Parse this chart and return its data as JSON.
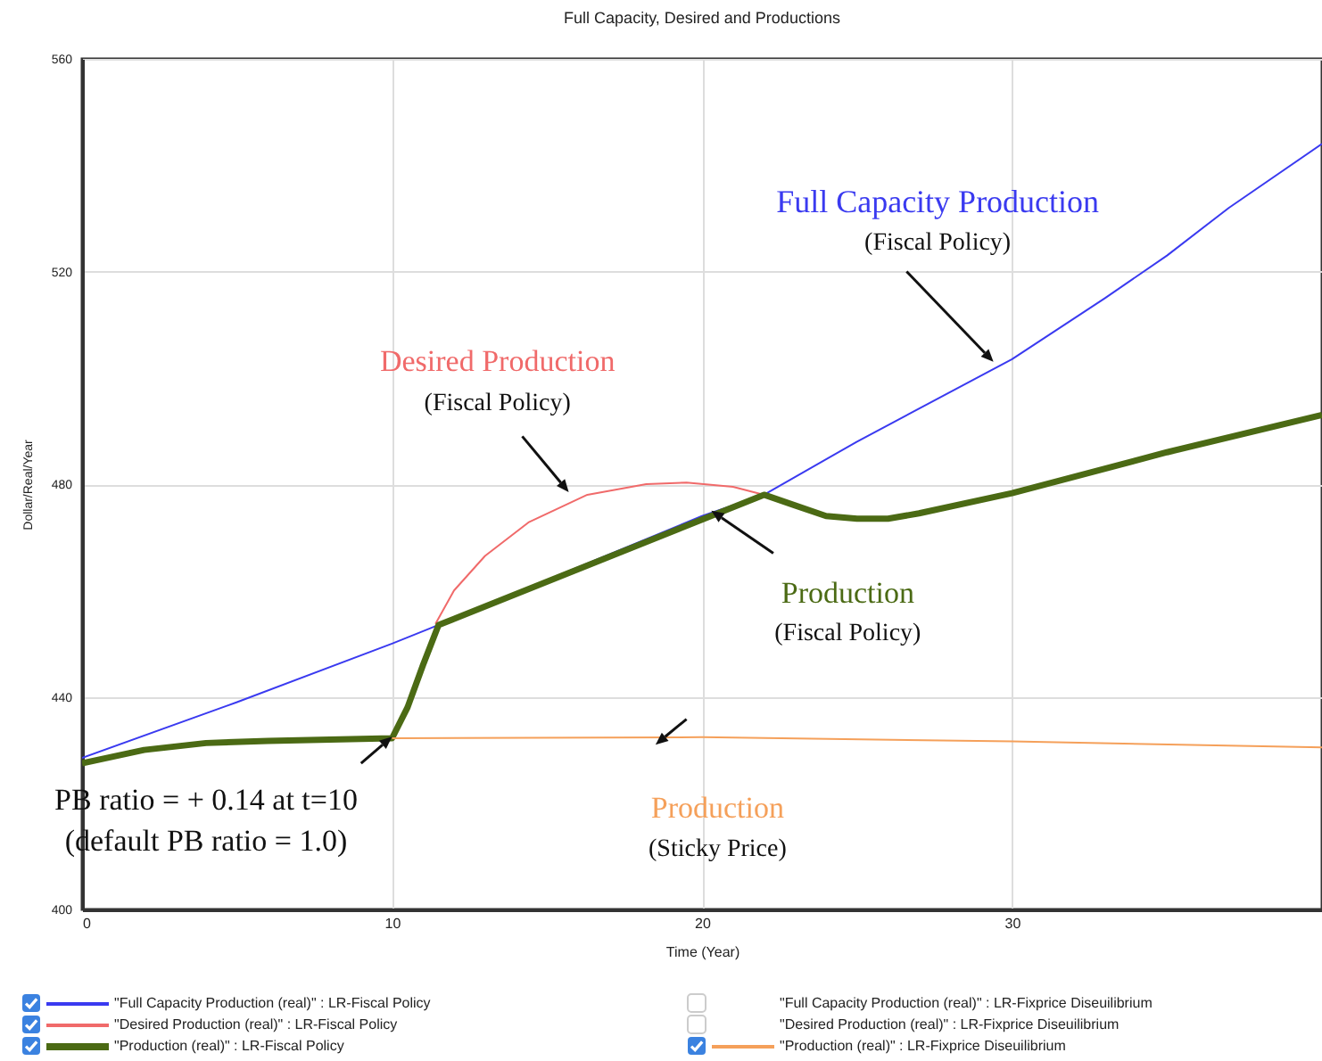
{
  "chart_data": {
    "type": "line",
    "title": "Full Capacity, Desired and Productions",
    "xlabel": "Time (Year)",
    "ylabel": "Dollar/Real/Year",
    "xlim": [
      0,
      40
    ],
    "xticks": [
      0,
      10,
      20,
      30
    ],
    "ylim": [
      400,
      560
    ],
    "yticks": [
      400,
      440,
      480,
      520,
      560
    ],
    "grid": true,
    "legend": "bottom",
    "marker": "none",
    "line_style": "solid",
    "series": [
      {
        "name": "\"Full Capacity Production (real)\" : LR-Fiscal Policy",
        "color": "#3a3af0",
        "x": [
          0,
          5,
          10,
          11.2,
          20,
          22,
          25,
          30,
          33,
          35,
          37,
          40
        ],
        "values": [
          428.5,
          439,
          450,
          452.8,
          474,
          478,
          488,
          503.5,
          515,
          523,
          532,
          544
        ]
      },
      {
        "name": "\"Desired Production (real)\" : LR-Fiscal Policy",
        "color": "#f06a6a",
        "x": [
          11.4,
          12,
          13,
          14.4,
          16.3,
          18.2,
          19.5,
          21,
          22
        ],
        "values": [
          453.7,
          460,
          466.5,
          472.8,
          478,
          480,
          480.3,
          479.5,
          478
        ]
      },
      {
        "name": "\"Production (real)\" : LR-Fiscal Policy",
        "color": "#4b6a14",
        "x": [
          0,
          2,
          4,
          6,
          10,
          10.5,
          11,
          11.5,
          22,
          23,
          24,
          25,
          26,
          27,
          30,
          35,
          40
        ],
        "values": [
          427.5,
          430,
          431.3,
          431.7,
          432.2,
          438,
          446,
          453.5,
          478,
          476,
          474,
          473.5,
          473.5,
          474.5,
          478.3,
          486,
          493
        ]
      },
      {
        "name": "\"Production (real)\" : LR-Fixprice Diseuilibrium",
        "color": "#f5a05a",
        "x": [
          10,
          20,
          30,
          40
        ],
        "values": [
          432.2,
          432.4,
          431.6,
          430.5
        ]
      }
    ],
    "annotations": [
      "Full Capacity Production",
      "(Fiscal Policy)",
      "Desired Production",
      "(Fiscal Policy)",
      "Production",
      "(Fiscal Policy)",
      "Production",
      "(Sticky Price)",
      "PB ratio = + 0.14 at t=10",
      "(default PB ratio = 1.0)",
      "\"Full Capacity Production (real)\" : LR-Fixprice Diseuilibrium",
      "\"Desired Production (real)\" : LR-Fixprice Diseuilibrium"
    ]
  }
}
